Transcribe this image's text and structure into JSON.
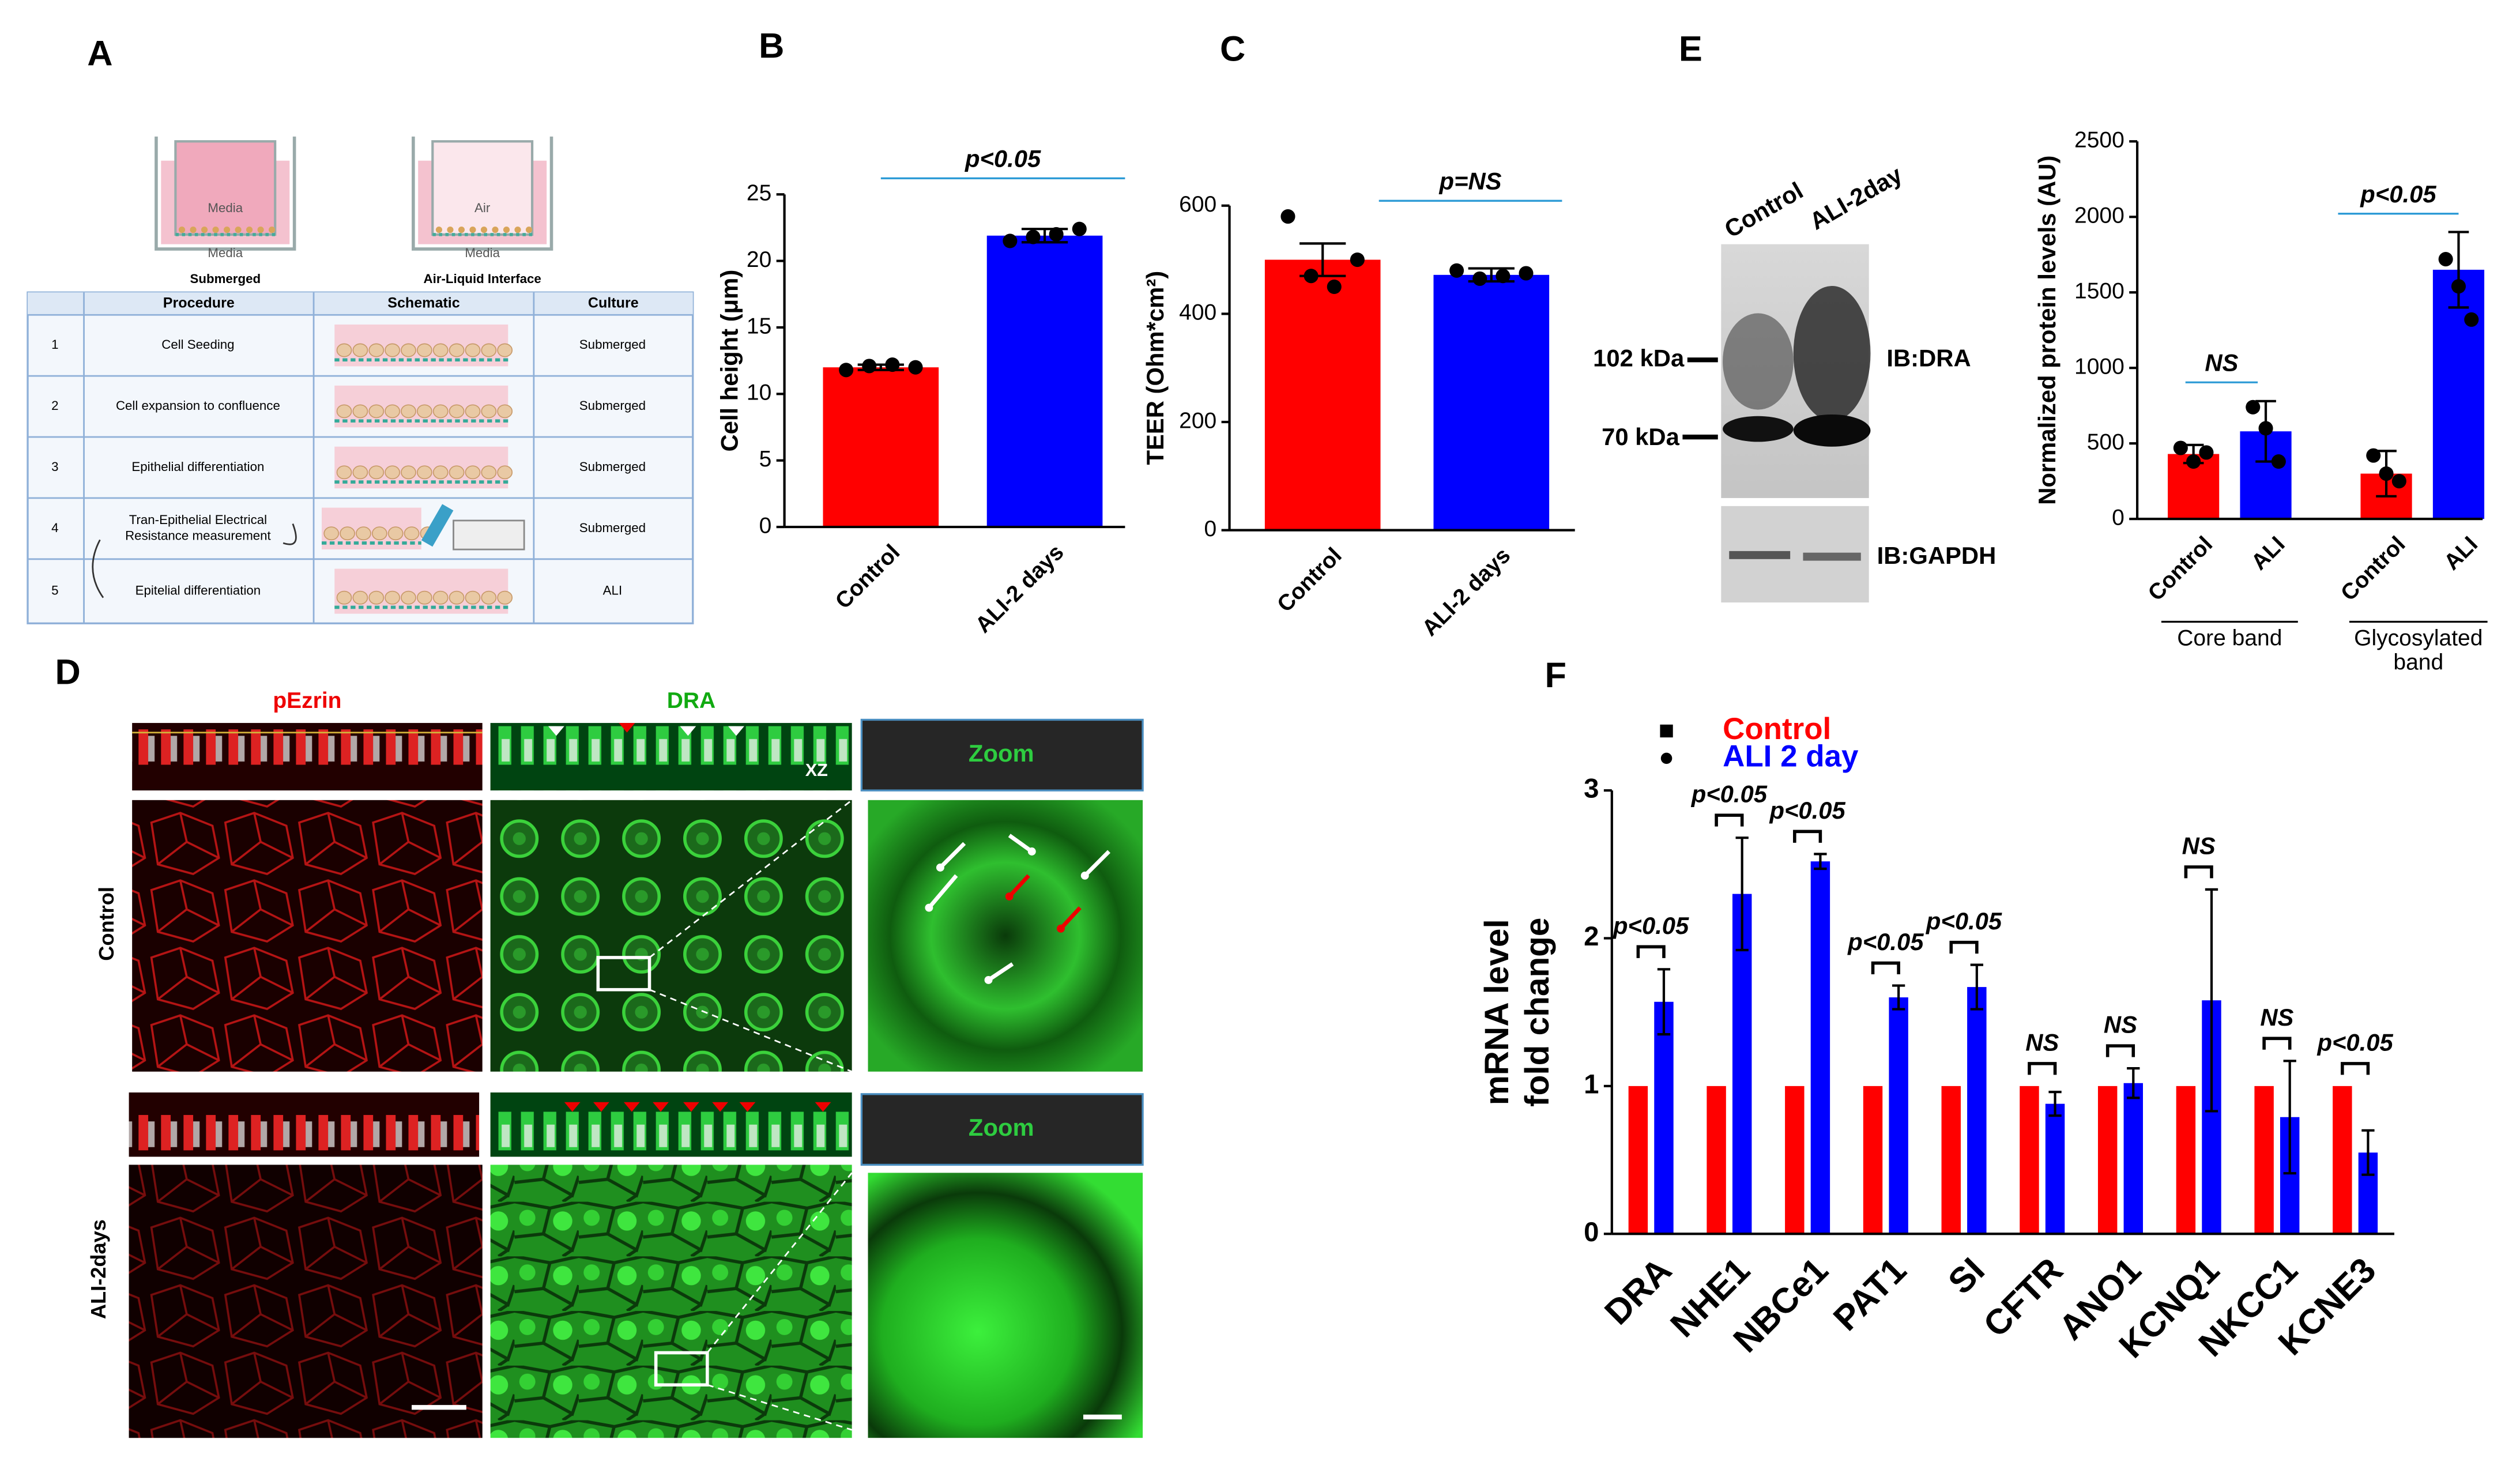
{
  "panel_labels": [
    "A",
    "B",
    "C",
    "D",
    "E",
    "F"
  ],
  "schematic": [
    {
      "top": "Media",
      "bottom": "Media",
      "caption": "Submerged"
    },
    {
      "top": "Air",
      "bottom": "Media",
      "caption": "Air-Liquid Interface"
    }
  ],
  "table": {
    "header": [
      "Procedure",
      "Schematic",
      "Culture"
    ],
    "rows": [
      [
        "1",
        [
          "Cell Seeding"
        ],
        "Submerged"
      ],
      [
        "2",
        [
          "Cell expansion to confluence"
        ],
        "Submerged"
      ],
      [
        "3",
        [
          "Epithelial differentiation"
        ],
        "Submerged"
      ],
      [
        "4",
        [
          "Tran-Epithelial Electrical",
          "Resistance measurement"
        ],
        "Submerged"
      ],
      [
        "5",
        [
          "Epitelial differentiation"
        ],
        "ALI"
      ]
    ]
  },
  "imaging": {
    "stains": [
      "pEzrin",
      "DRA"
    ],
    "conditions": [
      "Control",
      "ALI-2days"
    ],
    "zoom_label": "Zoom",
    "view_label": "XZ"
  },
  "blot": {
    "lanes": [
      "Control",
      "ALI-2day"
    ],
    "markers": [
      "102 kDa",
      "70 kDa"
    ],
    "antibodies": [
      "IB:DRA",
      "IB:GAPDH"
    ]
  },
  "chart_data": [
    {
      "type": "bar",
      "categories": [
        "Control",
        "ALI-2 days"
      ],
      "values": [
        12.0,
        21.9
      ],
      "errors": [
        0.2,
        0.5
      ],
      "points": [
        [
          11.8,
          12.1,
          12.2,
          12.0
        ],
        [
          21.5,
          21.8,
          22.0,
          22.4
        ]
      ],
      "colors": [
        "#ff0000",
        "#0000ff"
      ],
      "ylabel": [
        "Cell height (μm)"
      ],
      "ylim": [
        0,
        25
      ],
      "yticks": [
        0,
        5,
        10,
        15,
        20,
        25
      ],
      "annotations": [
        "p<0.05"
      ]
    },
    {
      "type": "bar",
      "categories": [
        "Control",
        "ALI-2 days"
      ],
      "values": [
        500,
        472
      ],
      "errors": [
        30,
        12
      ],
      "points": [
        [
          580,
          470,
          450,
          500
        ],
        [
          480,
          465,
          470,
          475
        ]
      ],
      "colors": [
        "#ff0000",
        "#0000ff"
      ],
      "ylabel": [
        "TEER (Ohm*cm²)"
      ],
      "ylim": [
        0,
        600
      ],
      "yticks": [
        0,
        200,
        400,
        600
      ],
      "annotations": [
        "p=NS"
      ]
    },
    {
      "type": "bar",
      "categories": [
        "Control",
        "ALI",
        "Control",
        "ALI"
      ],
      "values": [
        430,
        580,
        300,
        1650
      ],
      "errors": [
        60,
        200,
        150,
        250
      ],
      "points": [
        [
          470,
          380,
          440
        ],
        [
          740,
          600,
          380
        ],
        [
          420,
          300,
          250
        ],
        [
          1720,
          1540,
          1320
        ]
      ],
      "colors": [
        "#ff0000",
        "#0000ff",
        "#ff0000",
        "#0000ff"
      ],
      "ylabel": [
        "Normalized protein levels (AU)"
      ],
      "group_labels": [
        [
          "Core band"
        ],
        [
          "Glycosylated",
          "band"
        ]
      ],
      "ylim": [
        0,
        2500
      ],
      "yticks": [
        0,
        500,
        1000,
        1500,
        2000,
        2500
      ],
      "annotations": [
        "NS",
        "p<0.05"
      ]
    },
    {
      "type": "grouped_bar",
      "categories": [
        "DRA",
        "NHE1",
        "NBCe1",
        "PAT1",
        "SI",
        "CFTR",
        "ANO1",
        "KCNQ1",
        "NKCC1",
        "KCNE3"
      ],
      "series": [
        {
          "name": "Control",
          "color": "#ff0000",
          "values": [
            1,
            1,
            1,
            1,
            1,
            1,
            1,
            1,
            1,
            1
          ]
        },
        {
          "name": "ALI 2 day",
          "color": "#0000ff",
          "values": [
            1.57,
            2.3,
            2.52,
            1.6,
            1.67,
            0.88,
            1.02,
            1.58,
            0.79,
            0.55
          ],
          "errors": [
            0.22,
            0.38,
            0.05,
            0.08,
            0.15,
            0.08,
            0.1,
            0.75,
            0.38,
            0.15
          ]
        }
      ],
      "ylabel": [
        "mRNA level",
        "fold change"
      ],
      "ylim": [
        0,
        3
      ],
      "yticks": [
        0,
        1,
        2,
        3
      ],
      "annotations": [
        "p<0.05",
        "p<0.05",
        "p<0.05",
        "p<0.05",
        "p<0.05",
        "NS",
        "NS",
        "NS",
        "NS",
        "p<0.05"
      ]
    }
  ]
}
